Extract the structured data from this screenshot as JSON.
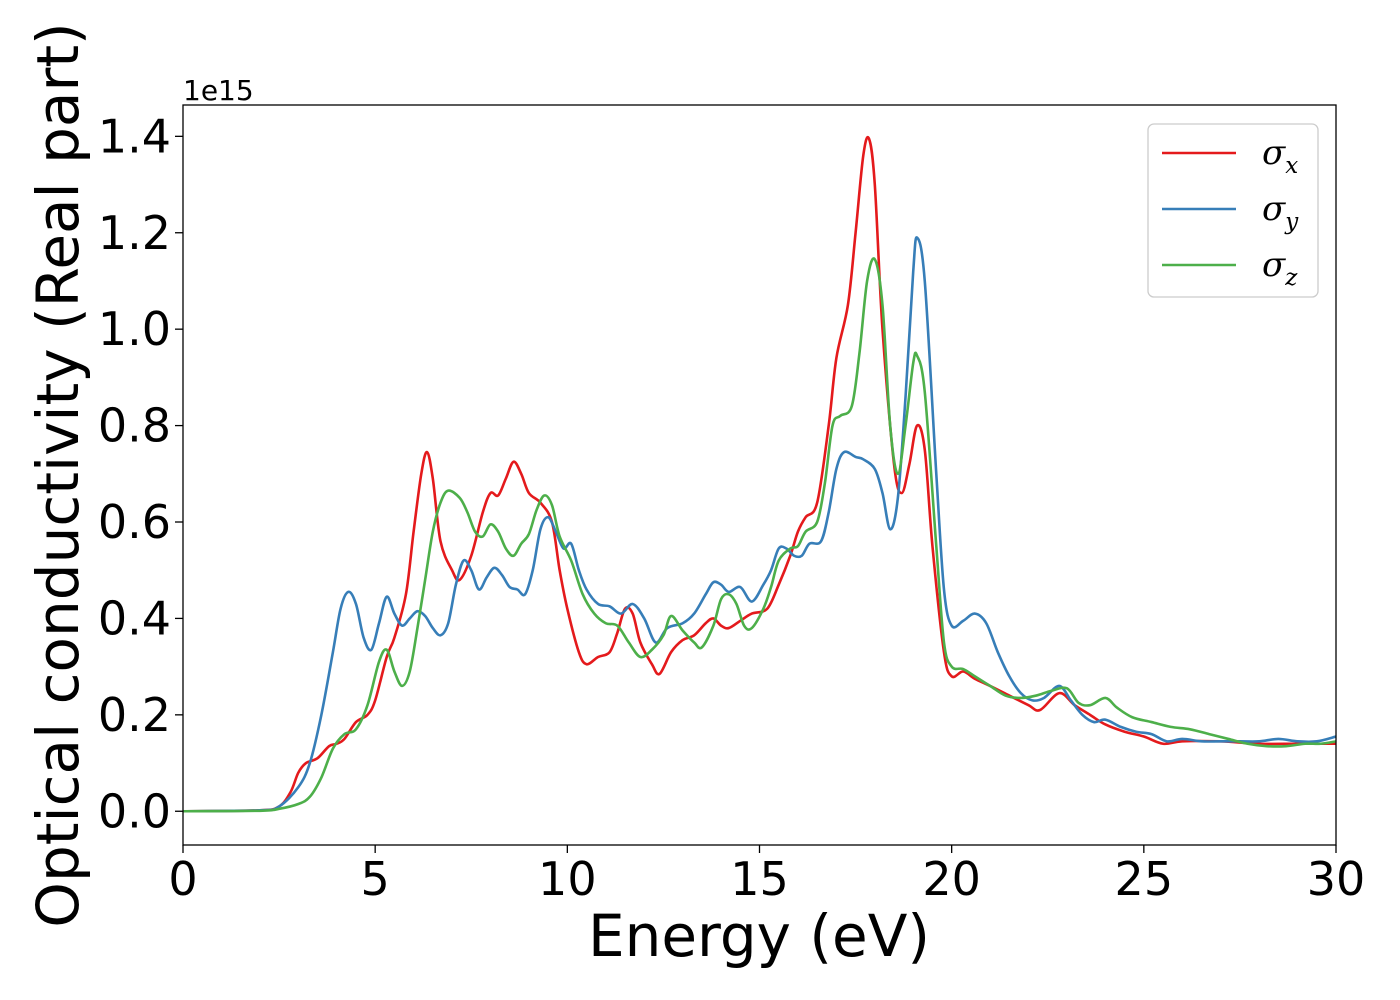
{
  "chart_data": {
    "type": "line",
    "title": "",
    "xlabel": "Energy (eV)",
    "ylabel": "Optical conductivity (Real part)",
    "y_offset_text": "1e15",
    "xlim": [
      0,
      30
    ],
    "ylim": [
      -0.07,
      1.465
    ],
    "x_ticks": [
      0,
      5,
      10,
      15,
      20,
      25,
      30
    ],
    "x_tick_labels": [
      "0",
      "5",
      "10",
      "15",
      "20",
      "25",
      "30"
    ],
    "y_ticks": [
      0.0,
      0.2,
      0.4,
      0.6,
      0.8,
      1.0,
      1.2,
      1.4
    ],
    "y_tick_labels": [
      "0.0",
      "0.2",
      "0.4",
      "0.6",
      "0.8",
      "1.0",
      "1.2",
      "1.4"
    ],
    "grid": false,
    "legend_position": "top-right",
    "series": [
      {
        "name": "σx",
        "legend_symbol": "σ",
        "legend_sub": "x",
        "color": "#e41a1c",
        "points": [
          [
            0,
            0
          ],
          [
            2.0,
            0.002
          ],
          [
            2.5,
            0.01
          ],
          [
            2.8,
            0.04
          ],
          [
            3.0,
            0.08
          ],
          [
            3.2,
            0.1
          ],
          [
            3.5,
            0.11
          ],
          [
            3.8,
            0.135
          ],
          [
            4.0,
            0.14
          ],
          [
            4.2,
            0.15
          ],
          [
            4.5,
            0.185
          ],
          [
            4.8,
            0.2
          ],
          [
            5.0,
            0.23
          ],
          [
            5.3,
            0.32
          ],
          [
            5.5,
            0.36
          ],
          [
            5.8,
            0.45
          ],
          [
            6.0,
            0.58
          ],
          [
            6.2,
            0.7
          ],
          [
            6.35,
            0.745
          ],
          [
            6.5,
            0.69
          ],
          [
            6.7,
            0.56
          ],
          [
            7.0,
            0.5
          ],
          [
            7.2,
            0.48
          ],
          [
            7.5,
            0.53
          ],
          [
            7.8,
            0.62
          ],
          [
            8.0,
            0.66
          ],
          [
            8.2,
            0.655
          ],
          [
            8.4,
            0.69
          ],
          [
            8.6,
            0.725
          ],
          [
            8.8,
            0.7
          ],
          [
            9.0,
            0.66
          ],
          [
            9.3,
            0.64
          ],
          [
            9.6,
            0.6
          ],
          [
            9.8,
            0.5
          ],
          [
            10.0,
            0.42
          ],
          [
            10.3,
            0.33
          ],
          [
            10.5,
            0.305
          ],
          [
            10.8,
            0.32
          ],
          [
            11.1,
            0.33
          ],
          [
            11.3,
            0.37
          ],
          [
            11.5,
            0.42
          ],
          [
            11.7,
            0.41
          ],
          [
            11.9,
            0.35
          ],
          [
            12.2,
            0.305
          ],
          [
            12.4,
            0.285
          ],
          [
            12.7,
            0.33
          ],
          [
            13.0,
            0.355
          ],
          [
            13.3,
            0.365
          ],
          [
            13.6,
            0.39
          ],
          [
            13.8,
            0.4
          ],
          [
            14.0,
            0.385
          ],
          [
            14.2,
            0.38
          ],
          [
            14.5,
            0.395
          ],
          [
            14.8,
            0.41
          ],
          [
            15.2,
            0.42
          ],
          [
            15.5,
            0.47
          ],
          [
            15.8,
            0.53
          ],
          [
            16.0,
            0.58
          ],
          [
            16.2,
            0.61
          ],
          [
            16.5,
            0.64
          ],
          [
            16.8,
            0.8
          ],
          [
            17.0,
            0.94
          ],
          [
            17.3,
            1.05
          ],
          [
            17.5,
            1.2
          ],
          [
            17.7,
            1.36
          ],
          [
            17.85,
            1.395
          ],
          [
            18.0,
            1.3
          ],
          [
            18.2,
            1.0
          ],
          [
            18.5,
            0.72
          ],
          [
            18.7,
            0.66
          ],
          [
            18.9,
            0.72
          ],
          [
            19.1,
            0.8
          ],
          [
            19.3,
            0.75
          ],
          [
            19.5,
            0.55
          ],
          [
            19.8,
            0.33
          ],
          [
            20.0,
            0.28
          ],
          [
            20.3,
            0.29
          ],
          [
            20.6,
            0.275
          ],
          [
            21.0,
            0.26
          ],
          [
            21.5,
            0.24
          ],
          [
            22.0,
            0.22
          ],
          [
            22.3,
            0.21
          ],
          [
            22.8,
            0.245
          ],
          [
            23.2,
            0.22
          ],
          [
            23.6,
            0.2
          ],
          [
            24.0,
            0.18
          ],
          [
            24.5,
            0.165
          ],
          [
            25.0,
            0.155
          ],
          [
            25.5,
            0.14
          ],
          [
            26.0,
            0.145
          ],
          [
            27.0,
            0.145
          ],
          [
            28.0,
            0.14
          ],
          [
            29.0,
            0.14
          ],
          [
            30.0,
            0.14
          ]
        ]
      },
      {
        "name": "σy",
        "legend_symbol": "σ",
        "legend_sub": "y",
        "color": "#377eb8",
        "points": [
          [
            0,
            0
          ],
          [
            2.0,
            0.002
          ],
          [
            2.5,
            0.01
          ],
          [
            3.0,
            0.05
          ],
          [
            3.3,
            0.1
          ],
          [
            3.6,
            0.2
          ],
          [
            3.9,
            0.33
          ],
          [
            4.1,
            0.42
          ],
          [
            4.3,
            0.455
          ],
          [
            4.5,
            0.43
          ],
          [
            4.7,
            0.36
          ],
          [
            4.9,
            0.335
          ],
          [
            5.1,
            0.39
          ],
          [
            5.3,
            0.445
          ],
          [
            5.5,
            0.41
          ],
          [
            5.7,
            0.385
          ],
          [
            5.9,
            0.4
          ],
          [
            6.1,
            0.415
          ],
          [
            6.3,
            0.405
          ],
          [
            6.5,
            0.38
          ],
          [
            6.7,
            0.365
          ],
          [
            6.9,
            0.39
          ],
          [
            7.1,
            0.47
          ],
          [
            7.3,
            0.52
          ],
          [
            7.5,
            0.5
          ],
          [
            7.7,
            0.46
          ],
          [
            7.9,
            0.485
          ],
          [
            8.1,
            0.505
          ],
          [
            8.3,
            0.49
          ],
          [
            8.5,
            0.465
          ],
          [
            8.7,
            0.46
          ],
          [
            8.9,
            0.45
          ],
          [
            9.1,
            0.5
          ],
          [
            9.3,
            0.585
          ],
          [
            9.5,
            0.61
          ],
          [
            9.7,
            0.58
          ],
          [
            9.9,
            0.545
          ],
          [
            10.1,
            0.555
          ],
          [
            10.3,
            0.5
          ],
          [
            10.5,
            0.46
          ],
          [
            10.8,
            0.43
          ],
          [
            11.1,
            0.425
          ],
          [
            11.4,
            0.41
          ],
          [
            11.7,
            0.43
          ],
          [
            12.0,
            0.4
          ],
          [
            12.3,
            0.35
          ],
          [
            12.6,
            0.38
          ],
          [
            13.0,
            0.39
          ],
          [
            13.3,
            0.41
          ],
          [
            13.6,
            0.45
          ],
          [
            13.8,
            0.475
          ],
          [
            14.0,
            0.47
          ],
          [
            14.2,
            0.455
          ],
          [
            14.5,
            0.465
          ],
          [
            14.8,
            0.435
          ],
          [
            15.1,
            0.47
          ],
          [
            15.3,
            0.5
          ],
          [
            15.5,
            0.545
          ],
          [
            15.7,
            0.545
          ],
          [
            15.9,
            0.53
          ],
          [
            16.1,
            0.53
          ],
          [
            16.3,
            0.555
          ],
          [
            16.6,
            0.56
          ],
          [
            16.8,
            0.62
          ],
          [
            17.0,
            0.71
          ],
          [
            17.2,
            0.745
          ],
          [
            17.5,
            0.735
          ],
          [
            17.7,
            0.73
          ],
          [
            18.0,
            0.71
          ],
          [
            18.2,
            0.66
          ],
          [
            18.4,
            0.585
          ],
          [
            18.6,
            0.65
          ],
          [
            18.8,
            0.86
          ],
          [
            19.0,
            1.12
          ],
          [
            19.1,
            1.19
          ],
          [
            19.3,
            1.1
          ],
          [
            19.6,
            0.7
          ],
          [
            19.8,
            0.46
          ],
          [
            20.0,
            0.385
          ],
          [
            20.3,
            0.395
          ],
          [
            20.6,
            0.41
          ],
          [
            20.9,
            0.39
          ],
          [
            21.2,
            0.33
          ],
          [
            21.5,
            0.28
          ],
          [
            21.8,
            0.245
          ],
          [
            22.1,
            0.23
          ],
          [
            22.4,
            0.235
          ],
          [
            22.8,
            0.26
          ],
          [
            23.1,
            0.23
          ],
          [
            23.4,
            0.2
          ],
          [
            23.7,
            0.185
          ],
          [
            24.0,
            0.19
          ],
          [
            24.4,
            0.175
          ],
          [
            24.8,
            0.165
          ],
          [
            25.2,
            0.16
          ],
          [
            25.6,
            0.145
          ],
          [
            26.0,
            0.15
          ],
          [
            26.5,
            0.145
          ],
          [
            27.0,
            0.145
          ],
          [
            27.5,
            0.145
          ],
          [
            28.0,
            0.145
          ],
          [
            28.5,
            0.15
          ],
          [
            29.0,
            0.145
          ],
          [
            29.5,
            0.145
          ],
          [
            30.0,
            0.155
          ]
        ]
      },
      {
        "name": "σz",
        "legend_symbol": "σ",
        "legend_sub": "z",
        "color": "#4daf4a",
        "points": [
          [
            0,
            0
          ],
          [
            2.0,
            0.001
          ],
          [
            2.5,
            0.005
          ],
          [
            3.0,
            0.015
          ],
          [
            3.3,
            0.03
          ],
          [
            3.6,
            0.07
          ],
          [
            3.9,
            0.13
          ],
          [
            4.2,
            0.16
          ],
          [
            4.5,
            0.17
          ],
          [
            4.8,
            0.22
          ],
          [
            5.1,
            0.31
          ],
          [
            5.3,
            0.335
          ],
          [
            5.5,
            0.29
          ],
          [
            5.7,
            0.26
          ],
          [
            5.9,
            0.29
          ],
          [
            6.1,
            0.38
          ],
          [
            6.3,
            0.48
          ],
          [
            6.5,
            0.58
          ],
          [
            6.7,
            0.64
          ],
          [
            6.9,
            0.665
          ],
          [
            7.2,
            0.65
          ],
          [
            7.4,
            0.62
          ],
          [
            7.6,
            0.58
          ],
          [
            7.8,
            0.57
          ],
          [
            8.0,
            0.595
          ],
          [
            8.2,
            0.58
          ],
          [
            8.4,
            0.545
          ],
          [
            8.6,
            0.53
          ],
          [
            8.8,
            0.555
          ],
          [
            9.0,
            0.575
          ],
          [
            9.2,
            0.625
          ],
          [
            9.4,
            0.655
          ],
          [
            9.6,
            0.635
          ],
          [
            9.8,
            0.57
          ],
          [
            10.1,
            0.52
          ],
          [
            10.4,
            0.45
          ],
          [
            10.7,
            0.41
          ],
          [
            11.0,
            0.39
          ],
          [
            11.3,
            0.385
          ],
          [
            11.6,
            0.35
          ],
          [
            11.9,
            0.32
          ],
          [
            12.2,
            0.335
          ],
          [
            12.5,
            0.365
          ],
          [
            12.7,
            0.405
          ],
          [
            13.0,
            0.375
          ],
          [
            13.3,
            0.35
          ],
          [
            13.5,
            0.34
          ],
          [
            13.8,
            0.385
          ],
          [
            14.0,
            0.44
          ],
          [
            14.2,
            0.45
          ],
          [
            14.4,
            0.43
          ],
          [
            14.6,
            0.385
          ],
          [
            14.8,
            0.38
          ],
          [
            15.1,
            0.42
          ],
          [
            15.3,
            0.465
          ],
          [
            15.5,
            0.52
          ],
          [
            15.8,
            0.545
          ],
          [
            16.0,
            0.55
          ],
          [
            16.2,
            0.58
          ],
          [
            16.5,
            0.6
          ],
          [
            16.7,
            0.68
          ],
          [
            16.9,
            0.8
          ],
          [
            17.1,
            0.82
          ],
          [
            17.4,
            0.84
          ],
          [
            17.6,
            0.95
          ],
          [
            17.8,
            1.1
          ],
          [
            18.0,
            1.145
          ],
          [
            18.2,
            1.05
          ],
          [
            18.4,
            0.8
          ],
          [
            18.6,
            0.7
          ],
          [
            18.8,
            0.8
          ],
          [
            19.0,
            0.93
          ],
          [
            19.1,
            0.945
          ],
          [
            19.3,
            0.87
          ],
          [
            19.6,
            0.55
          ],
          [
            19.8,
            0.35
          ],
          [
            20.0,
            0.3
          ],
          [
            20.3,
            0.295
          ],
          [
            20.6,
            0.28
          ],
          [
            21.0,
            0.26
          ],
          [
            21.4,
            0.24
          ],
          [
            21.8,
            0.235
          ],
          [
            22.2,
            0.24
          ],
          [
            22.6,
            0.25
          ],
          [
            23.0,
            0.255
          ],
          [
            23.3,
            0.225
          ],
          [
            23.6,
            0.22
          ],
          [
            24.0,
            0.235
          ],
          [
            24.3,
            0.215
          ],
          [
            24.7,
            0.195
          ],
          [
            25.2,
            0.185
          ],
          [
            25.7,
            0.175
          ],
          [
            26.2,
            0.17
          ],
          [
            26.7,
            0.16
          ],
          [
            27.2,
            0.15
          ],
          [
            27.7,
            0.14
          ],
          [
            28.2,
            0.135
          ],
          [
            28.7,
            0.135
          ],
          [
            29.2,
            0.14
          ],
          [
            29.6,
            0.14
          ],
          [
            30.0,
            0.145
          ]
        ]
      }
    ]
  }
}
